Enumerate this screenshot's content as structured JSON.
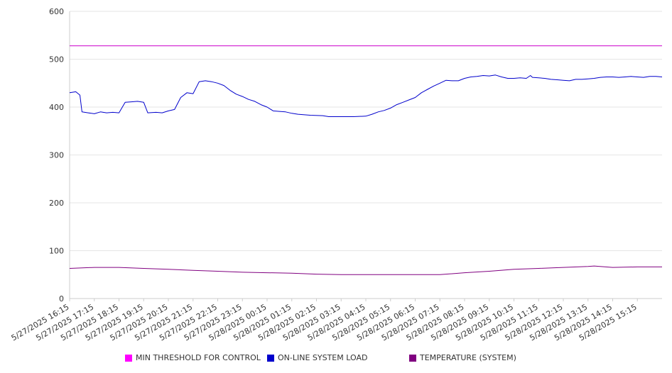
{
  "chart_data": {
    "type": "line",
    "xlabel": "",
    "ylabel": "",
    "ylim": [
      0,
      600
    ],
    "y_ticks": [
      "0",
      "100",
      "200",
      "300",
      "400",
      "500",
      "600"
    ],
    "x_ticks": [
      "5/27/2025 16:15",
      "5/27/2025 17:15",
      "5/27/2025 18:15",
      "5/27/2025 19:15",
      "5/27/2025 20:15",
      "5/27/2025 21:15",
      "5/27/2025 22:15",
      "5/27/2025 23:15",
      "5/28/2025 00:15",
      "5/28/2025 01:15",
      "5/28/2025 02:15",
      "5/28/2025 03:15",
      "5/28/2025 04:15",
      "5/28/2025 05:15",
      "5/28/2025 06:15",
      "5/28/2025 07:15",
      "5/28/2025 08:15",
      "5/28/2025 09:15",
      "5/28/2025 10:15",
      "5/28/2025 11:15",
      "5/28/2025 12:15",
      "5/28/2025 13:15",
      "5/28/2025 14:15",
      "5/28/2025 15:15"
    ],
    "grid": true,
    "legend_position": "bottom",
    "series": [
      {
        "name": "MIN THRESHOLD FOR CONTROL",
        "color": "#cc00cc",
        "points": [
          [
            "5/27/2025 16:15",
            528
          ],
          [
            "5/28/2025 16:15",
            528
          ]
        ]
      },
      {
        "name": "ON-LINE SYSTEM LOAD",
        "color": "#0000cc",
        "points": [
          [
            "5/27/2025 16:15",
            430
          ],
          [
            "5/27/2025 16:30",
            432
          ],
          [
            "5/27/2025 16:40",
            425
          ],
          [
            "5/27/2025 16:45",
            390
          ],
          [
            "5/27/2025 17:00",
            388
          ],
          [
            "5/27/2025 17:15",
            386
          ],
          [
            "5/27/2025 17:30",
            390
          ],
          [
            "5/27/2025 17:45",
            388
          ],
          [
            "5/27/2025 18:00",
            389
          ],
          [
            "5/27/2025 18:15",
            388
          ],
          [
            "5/27/2025 18:30",
            410
          ],
          [
            "5/27/2025 18:45",
            411
          ],
          [
            "5/27/2025 19:00",
            412
          ],
          [
            "5/27/2025 19:15",
            410
          ],
          [
            "5/27/2025 19:25",
            388
          ],
          [
            "5/27/2025 19:45",
            389
          ],
          [
            "5/27/2025 20:00",
            388
          ],
          [
            "5/27/2025 20:15",
            392
          ],
          [
            "5/27/2025 20:30",
            395
          ],
          [
            "5/27/2025 20:45",
            420
          ],
          [
            "5/27/2025 21:00",
            430
          ],
          [
            "5/27/2025 21:15",
            428
          ],
          [
            "5/27/2025 21:30",
            453
          ],
          [
            "5/27/2025 21:45",
            455
          ],
          [
            "5/27/2025 22:00",
            453
          ],
          [
            "5/27/2025 22:15",
            450
          ],
          [
            "5/27/2025 22:30",
            445
          ],
          [
            "5/27/2025 22:45",
            435
          ],
          [
            "5/27/2025 23:00",
            427
          ],
          [
            "5/27/2025 23:15",
            422
          ],
          [
            "5/27/2025 23:30",
            416
          ],
          [
            "5/27/2025 23:45",
            412
          ],
          [
            "5/28/2025 00:00",
            405
          ],
          [
            "5/28/2025 00:15",
            400
          ],
          [
            "5/28/2025 00:30",
            392
          ],
          [
            "5/28/2025 00:45",
            391
          ],
          [
            "5/28/2025 01:00",
            390
          ],
          [
            "5/28/2025 01:15",
            387
          ],
          [
            "5/28/2025 01:30",
            385
          ],
          [
            "5/28/2025 02:00",
            383
          ],
          [
            "5/28/2025 02:30",
            382
          ],
          [
            "5/28/2025 02:45",
            380
          ],
          [
            "5/28/2025 03:15",
            380
          ],
          [
            "5/28/2025 03:45",
            380
          ],
          [
            "5/28/2025 04:15",
            381
          ],
          [
            "5/28/2025 04:30",
            385
          ],
          [
            "5/28/2025 04:45",
            390
          ],
          [
            "5/28/2025 05:00",
            393
          ],
          [
            "5/28/2025 05:15",
            398
          ],
          [
            "5/28/2025 05:30",
            405
          ],
          [
            "5/28/2025 05:45",
            410
          ],
          [
            "5/28/2025 06:00",
            415
          ],
          [
            "5/28/2025 06:15",
            420
          ],
          [
            "5/28/2025 06:30",
            430
          ],
          [
            "5/28/2025 06:45",
            437
          ],
          [
            "5/28/2025 07:00",
            444
          ],
          [
            "5/28/2025 07:15",
            450
          ],
          [
            "5/28/2025 07:30",
            456
          ],
          [
            "5/28/2025 07:45",
            455
          ],
          [
            "5/28/2025 08:00",
            455
          ],
          [
            "5/28/2025 08:15",
            460
          ],
          [
            "5/28/2025 08:30",
            463
          ],
          [
            "5/28/2025 08:45",
            464
          ],
          [
            "5/28/2025 09:00",
            466
          ],
          [
            "5/28/2025 09:15",
            465
          ],
          [
            "5/28/2025 09:30",
            467
          ],
          [
            "5/28/2025 09:45",
            463
          ],
          [
            "5/28/2025 10:00",
            460
          ],
          [
            "5/28/2025 10:15",
            460
          ],
          [
            "5/28/2025 10:30",
            461
          ],
          [
            "5/28/2025 10:45",
            460
          ],
          [
            "5/28/2025 10:55",
            466
          ],
          [
            "5/28/2025 11:00",
            462
          ],
          [
            "5/28/2025 11:15",
            461
          ],
          [
            "5/28/2025 11:30",
            460
          ],
          [
            "5/28/2025 11:45",
            458
          ],
          [
            "5/28/2025 12:00",
            457
          ],
          [
            "5/28/2025 12:15",
            456
          ],
          [
            "5/28/2025 12:30",
            455
          ],
          [
            "5/28/2025 12:45",
            458
          ],
          [
            "5/28/2025 13:00",
            458
          ],
          [
            "5/28/2025 13:15",
            459
          ],
          [
            "5/28/2025 13:30",
            460
          ],
          [
            "5/28/2025 13:45",
            462
          ],
          [
            "5/28/2025 14:00",
            463
          ],
          [
            "5/28/2025 14:15",
            463
          ],
          [
            "5/28/2025 14:30",
            462
          ],
          [
            "5/28/2025 14:45",
            463
          ],
          [
            "5/28/2025 15:00",
            464
          ],
          [
            "5/28/2025 15:15",
            463
          ],
          [
            "5/28/2025 15:30",
            462
          ],
          [
            "5/28/2025 15:45",
            464
          ],
          [
            "5/28/2025 16:00",
            464
          ],
          [
            "5/28/2025 16:15",
            463
          ]
        ]
      },
      {
        "name": "TEMPERATURE (SYSTEM)",
        "color": "#800080",
        "points": [
          [
            "5/27/2025 16:15",
            63
          ],
          [
            "5/27/2025 17:15",
            65
          ],
          [
            "5/27/2025 18:15",
            65
          ],
          [
            "5/27/2025 19:15",
            63
          ],
          [
            "5/27/2025 20:15",
            61
          ],
          [
            "5/27/2025 21:15",
            59
          ],
          [
            "5/27/2025 22:15",
            57
          ],
          [
            "5/27/2025 23:15",
            55
          ],
          [
            "5/28/2025 00:15",
            54
          ],
          [
            "5/28/2025 01:15",
            53
          ],
          [
            "5/28/2025 02:15",
            51
          ],
          [
            "5/28/2025 03:15",
            50
          ],
          [
            "5/28/2025 04:15",
            50
          ],
          [
            "5/28/2025 05:15",
            50
          ],
          [
            "5/28/2025 06:15",
            50
          ],
          [
            "5/28/2025 07:15",
            50
          ],
          [
            "5/28/2025 08:15",
            54
          ],
          [
            "5/28/2025 09:15",
            57
          ],
          [
            "5/28/2025 10:15",
            61
          ],
          [
            "5/28/2025 11:15",
            63
          ],
          [
            "5/28/2025 12:15",
            65
          ],
          [
            "5/28/2025 13:15",
            67
          ],
          [
            "5/28/2025 13:30",
            68
          ],
          [
            "5/28/2025 14:15",
            65
          ],
          [
            "5/28/2025 15:15",
            66
          ],
          [
            "5/28/2025 16:15",
            66
          ]
        ]
      }
    ]
  }
}
